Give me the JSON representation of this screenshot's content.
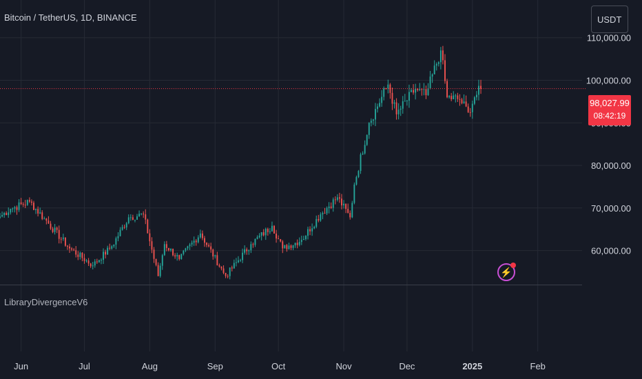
{
  "header": {
    "symbol": "Bitcoin / TetherUS, 1D, BINANCE",
    "currency_button": "USDT"
  },
  "indicator": {
    "name": "LibraryDivergenceV6"
  },
  "last_price": {
    "value": "98,027.99",
    "countdown": "08:42:19",
    "color": "#f23645"
  },
  "colors": {
    "background": "#161a25",
    "up": "#26a69a",
    "down": "#ef5350",
    "grid": "#262a35"
  },
  "chart_data": {
    "type": "candlestick",
    "y_tick_labels": [
      "110,000.00",
      "100,000.00",
      "90,000.00",
      "80,000.00",
      "70,000.00",
      "60,000.00"
    ],
    "y_ticks": [
      110000,
      100000,
      90000,
      80000,
      70000,
      60000
    ],
    "ylim": [
      52000,
      114000
    ],
    "x_tick_labels": [
      "Jun",
      "Jul",
      "Aug",
      "Sep",
      "Oct",
      "Nov",
      "Dec",
      "2025",
      "Feb"
    ],
    "x_ticks": [
      "2024-06-01",
      "2024-07-01",
      "2024-08-01",
      "2024-09-01",
      "2024-10-01",
      "2024-11-01",
      "2024-12-01",
      "2025-01-01",
      "2025-02-01"
    ],
    "x_start": "2024-05-22",
    "x_end": "2025-02-22",
    "close_anchors": [
      {
        "date": "2024-05-22",
        "close": 68000
      },
      {
        "date": "2024-05-27",
        "close": 69800
      },
      {
        "date": "2024-06-05",
        "close": 71500
      },
      {
        "date": "2024-06-12",
        "close": 67500
      },
      {
        "date": "2024-06-24",
        "close": 60500
      },
      {
        "date": "2024-07-05",
        "close": 56500
      },
      {
        "date": "2024-07-14",
        "close": 61000
      },
      {
        "date": "2024-07-22",
        "close": 67800
      },
      {
        "date": "2024-07-29",
        "close": 68500
      },
      {
        "date": "2024-08-05",
        "close": 54000
      },
      {
        "date": "2024-08-08",
        "close": 61500
      },
      {
        "date": "2024-08-15",
        "close": 58000
      },
      {
        "date": "2024-08-25",
        "close": 64000
      },
      {
        "date": "2024-09-06",
        "close": 54000
      },
      {
        "date": "2024-09-18",
        "close": 61500
      },
      {
        "date": "2024-09-28",
        "close": 65800
      },
      {
        "date": "2024-10-03",
        "close": 60500
      },
      {
        "date": "2024-10-12",
        "close": 62500
      },
      {
        "date": "2024-10-21",
        "close": 68500
      },
      {
        "date": "2024-10-29",
        "close": 72500
      },
      {
        "date": "2024-11-04",
        "close": 67800
      },
      {
        "date": "2024-11-06",
        "close": 75500
      },
      {
        "date": "2024-11-13",
        "close": 90000
      },
      {
        "date": "2024-11-22",
        "close": 99000
      },
      {
        "date": "2024-11-26",
        "close": 92000
      },
      {
        "date": "2024-12-05",
        "close": 98000
      },
      {
        "date": "2024-12-10",
        "close": 96500
      },
      {
        "date": "2024-12-17",
        "close": 107000
      },
      {
        "date": "2024-12-20",
        "close": 96000
      },
      {
        "date": "2024-12-26",
        "close": 95500
      },
      {
        "date": "2024-12-30",
        "close": 92500
      },
      {
        "date": "2025-01-02",
        "close": 96000
      },
      {
        "date": "2025-01-05",
        "close": 98028
      }
    ]
  }
}
